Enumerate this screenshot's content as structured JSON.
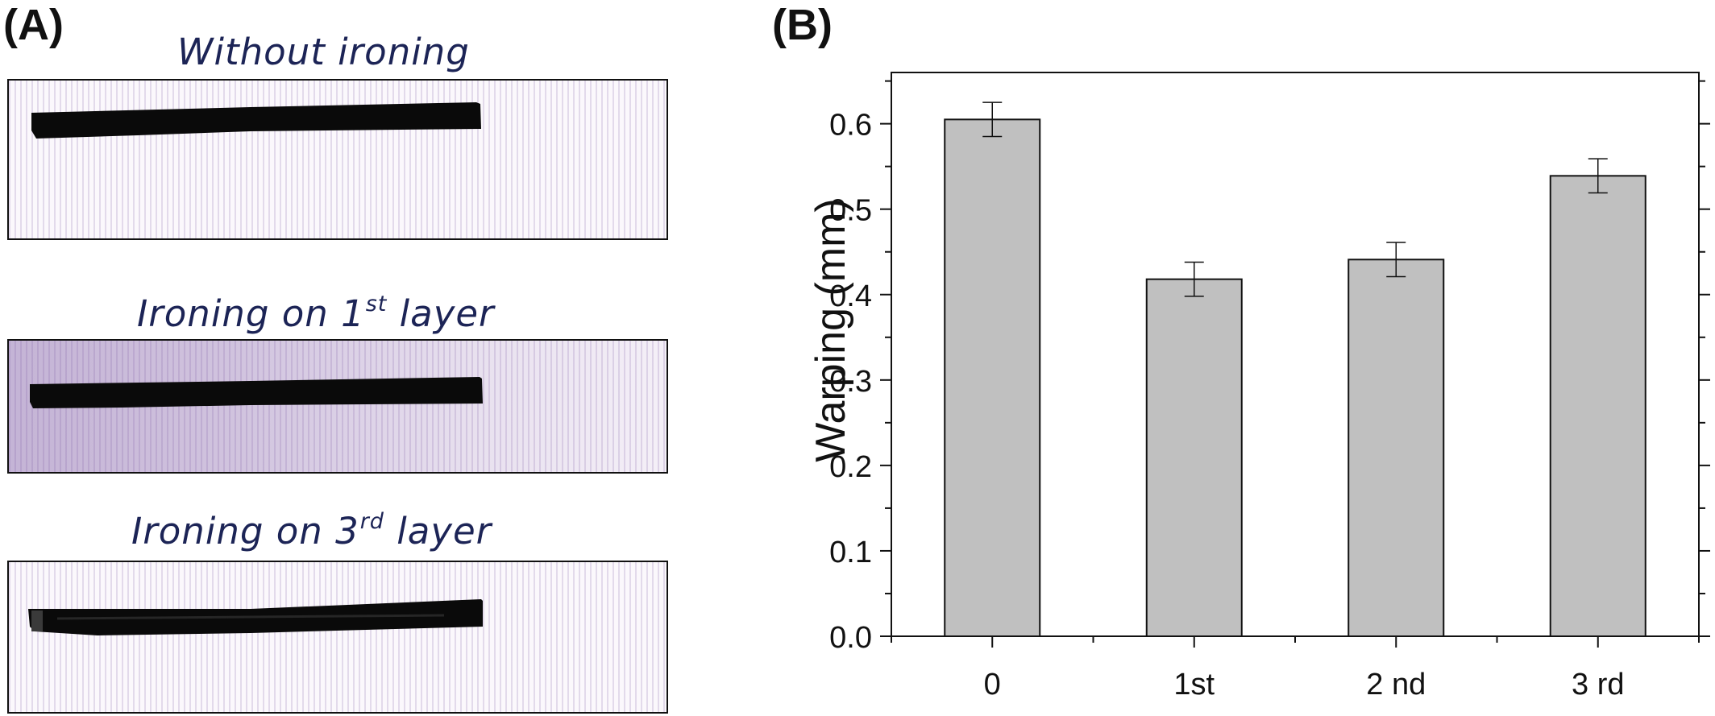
{
  "panel_a": {
    "label": "(A)",
    "samples": [
      {
        "caption": "Without ironing",
        "sup": "",
        "suffix": ""
      },
      {
        "caption": "Ironing on 1",
        "sup": "st",
        "suffix": " layer"
      },
      {
        "caption": "Ironing on 3",
        "sup": "rd",
        "suffix": "  layer"
      }
    ]
  },
  "panel_b": {
    "label": "(B)"
  },
  "chart_data": {
    "type": "bar",
    "categories": [
      "0",
      "1st",
      "2 nd",
      "3 rd"
    ],
    "values": [
      0.605,
      0.418,
      0.441,
      0.539
    ],
    "errors": [
      0.02,
      0.02,
      0.02,
      0.02
    ],
    "title": "",
    "xlabel": "",
    "ylabel": "Warping (mm)",
    "ylim": [
      0.0,
      0.66
    ],
    "yticks": [
      "0.0",
      "0.1",
      "0.2",
      "0.3",
      "0.4",
      "0.5",
      "0.6"
    ],
    "grid": false,
    "bar_color": "#c0c0c0",
    "edge_color": "#111111"
  }
}
